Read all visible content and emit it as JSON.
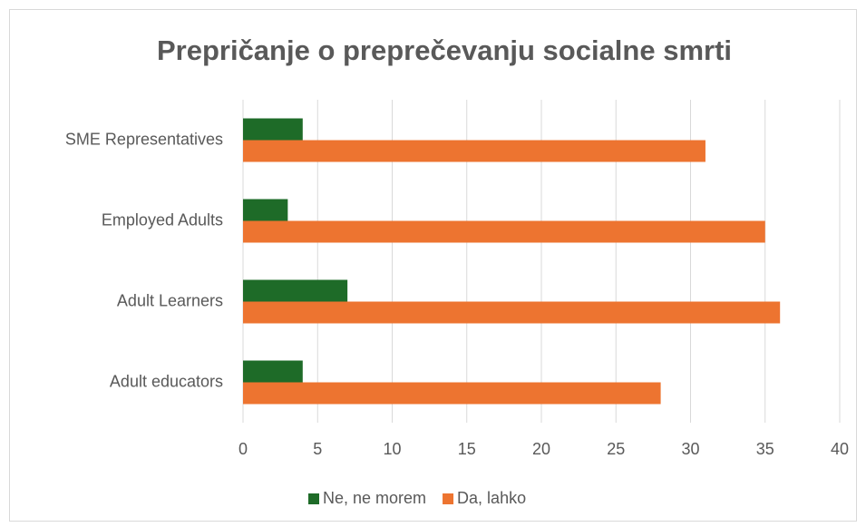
{
  "chart_data": {
    "type": "bar",
    "orientation": "horizontal",
    "title": "Prepričanje o preprečevanju socialne smrti",
    "categories": [
      "SME Representatives",
      "Employed Adults",
      "Adult Learners",
      "Adult educators"
    ],
    "series": [
      {
        "name": "Ne, ne morem",
        "color": "#1e6b28",
        "values": [
          4,
          3,
          7,
          4
        ]
      },
      {
        "name": "Da, lahko",
        "color": "#ed7430",
        "values": [
          31,
          35,
          36,
          28
        ]
      }
    ],
    "xlim": [
      0,
      40
    ],
    "xticks": [
      0,
      5,
      10,
      15,
      20,
      25,
      30,
      35,
      40
    ],
    "grid": true,
    "legend": "bottom"
  }
}
